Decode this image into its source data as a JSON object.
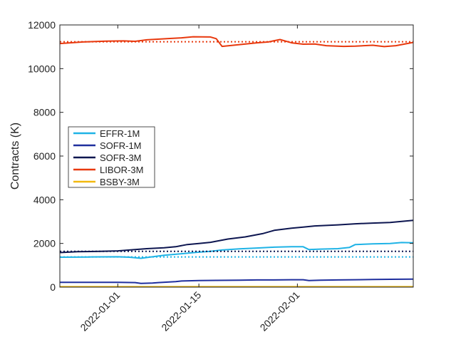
{
  "chart_data": {
    "type": "line",
    "title": "",
    "xlabel": "",
    "ylabel": "Contracts (K)",
    "ylim": [
      0,
      12000
    ],
    "xlim": [
      "2021-12-22",
      "2022-02-21"
    ],
    "yticks": [
      0,
      2000,
      4000,
      6000,
      8000,
      10000,
      12000
    ],
    "xticks": [
      "2022-01-01",
      "2022-01-15",
      "2022-02-01"
    ],
    "grid": false,
    "legend_position": "center-left",
    "series": [
      {
        "name": "EFFR-1M",
        "color": "#1fb3e6",
        "x": [
          "2021-12-22",
          "2021-12-27",
          "2022-01-01",
          "2022-01-03",
          "2022-01-05",
          "2022-01-07",
          "2022-01-09",
          "2022-01-12",
          "2022-01-15",
          "2022-01-17",
          "2022-01-19",
          "2022-01-22",
          "2022-01-25",
          "2022-01-28",
          "2022-01-31",
          "2022-02-02",
          "2022-02-03",
          "2022-02-05",
          "2022-02-08",
          "2022-02-10",
          "2022-02-11",
          "2022-02-14",
          "2022-02-17",
          "2022-02-19",
          "2022-02-21"
        ],
        "values": [
          1370,
          1380,
          1390,
          1370,
          1320,
          1390,
          1460,
          1530,
          1600,
          1640,
          1700,
          1750,
          1790,
          1830,
          1850,
          1850,
          1720,
          1740,
          1760,
          1820,
          1950,
          1980,
          2000,
          2040,
          2030
        ],
        "mean": 1380
      },
      {
        "name": "SOFR-1M",
        "color": "#1f2f9e",
        "x": [
          "2021-12-22",
          "2021-12-27",
          "2022-01-01",
          "2022-01-04",
          "2022-01-05",
          "2022-01-07",
          "2022-01-08",
          "2022-01-11",
          "2022-01-12",
          "2022-01-15",
          "2022-01-18",
          "2022-01-22",
          "2022-01-25",
          "2022-01-28",
          "2022-01-31",
          "2022-02-02",
          "2022-02-03",
          "2022-02-05",
          "2022-02-08",
          "2022-02-11",
          "2022-02-14",
          "2022-02-17",
          "2022-02-21"
        ],
        "values": [
          220,
          220,
          220,
          210,
          170,
          190,
          210,
          250,
          280,
          300,
          310,
          320,
          330,
          330,
          340,
          340,
          300,
          320,
          330,
          340,
          350,
          360,
          370
        ]
      },
      {
        "name": "SOFR-3M",
        "color": "#0d1650",
        "x": [
          "2021-12-22",
          "2021-12-25",
          "2021-12-29",
          "2022-01-01",
          "2022-01-03",
          "2022-01-06",
          "2022-01-09",
          "2022-01-11",
          "2022-01-13",
          "2022-01-15",
          "2022-01-17",
          "2022-01-20",
          "2022-01-23",
          "2022-01-26",
          "2022-01-28",
          "2022-01-31",
          "2022-02-02",
          "2022-02-04",
          "2022-02-08",
          "2022-02-11",
          "2022-02-14",
          "2022-02-17",
          "2022-02-21"
        ],
        "values": [
          1580,
          1620,
          1640,
          1660,
          1700,
          1760,
          1800,
          1850,
          1950,
          2000,
          2050,
          2200,
          2300,
          2450,
          2600,
          2700,
          2750,
          2800,
          2850,
          2900,
          2930,
          2960,
          3060
        ],
        "mean": 1640
      },
      {
        "name": "LIBOR-3M",
        "color": "#e8390e",
        "x": [
          "2021-12-22",
          "2021-12-26",
          "2021-12-30",
          "2022-01-02",
          "2022-01-04",
          "2022-01-06",
          "2022-01-10",
          "2022-01-12",
          "2022-01-14",
          "2022-01-17",
          "2022-01-18",
          "2022-01-19",
          "2022-01-22",
          "2022-01-25",
          "2022-01-27",
          "2022-01-28",
          "2022-01-29",
          "2022-01-31",
          "2022-02-02",
          "2022-02-04",
          "2022-02-06",
          "2022-02-09",
          "2022-02-11",
          "2022-02-14",
          "2022-02-16",
          "2022-02-18",
          "2022-02-21"
        ],
        "values": [
          11150,
          11220,
          11260,
          11270,
          11250,
          11320,
          11380,
          11410,
          11460,
          11450,
          11370,
          11020,
          11100,
          11180,
          11220,
          11280,
          11330,
          11180,
          11120,
          11130,
          11050,
          11020,
          11030,
          11070,
          11010,
          11050,
          11200
        ],
        "mean": 11230
      },
      {
        "name": "BSBY-3M",
        "color": "#f2b90f",
        "x": [
          "2021-12-22",
          "2022-02-21"
        ],
        "values": [
          20,
          20
        ]
      }
    ]
  }
}
